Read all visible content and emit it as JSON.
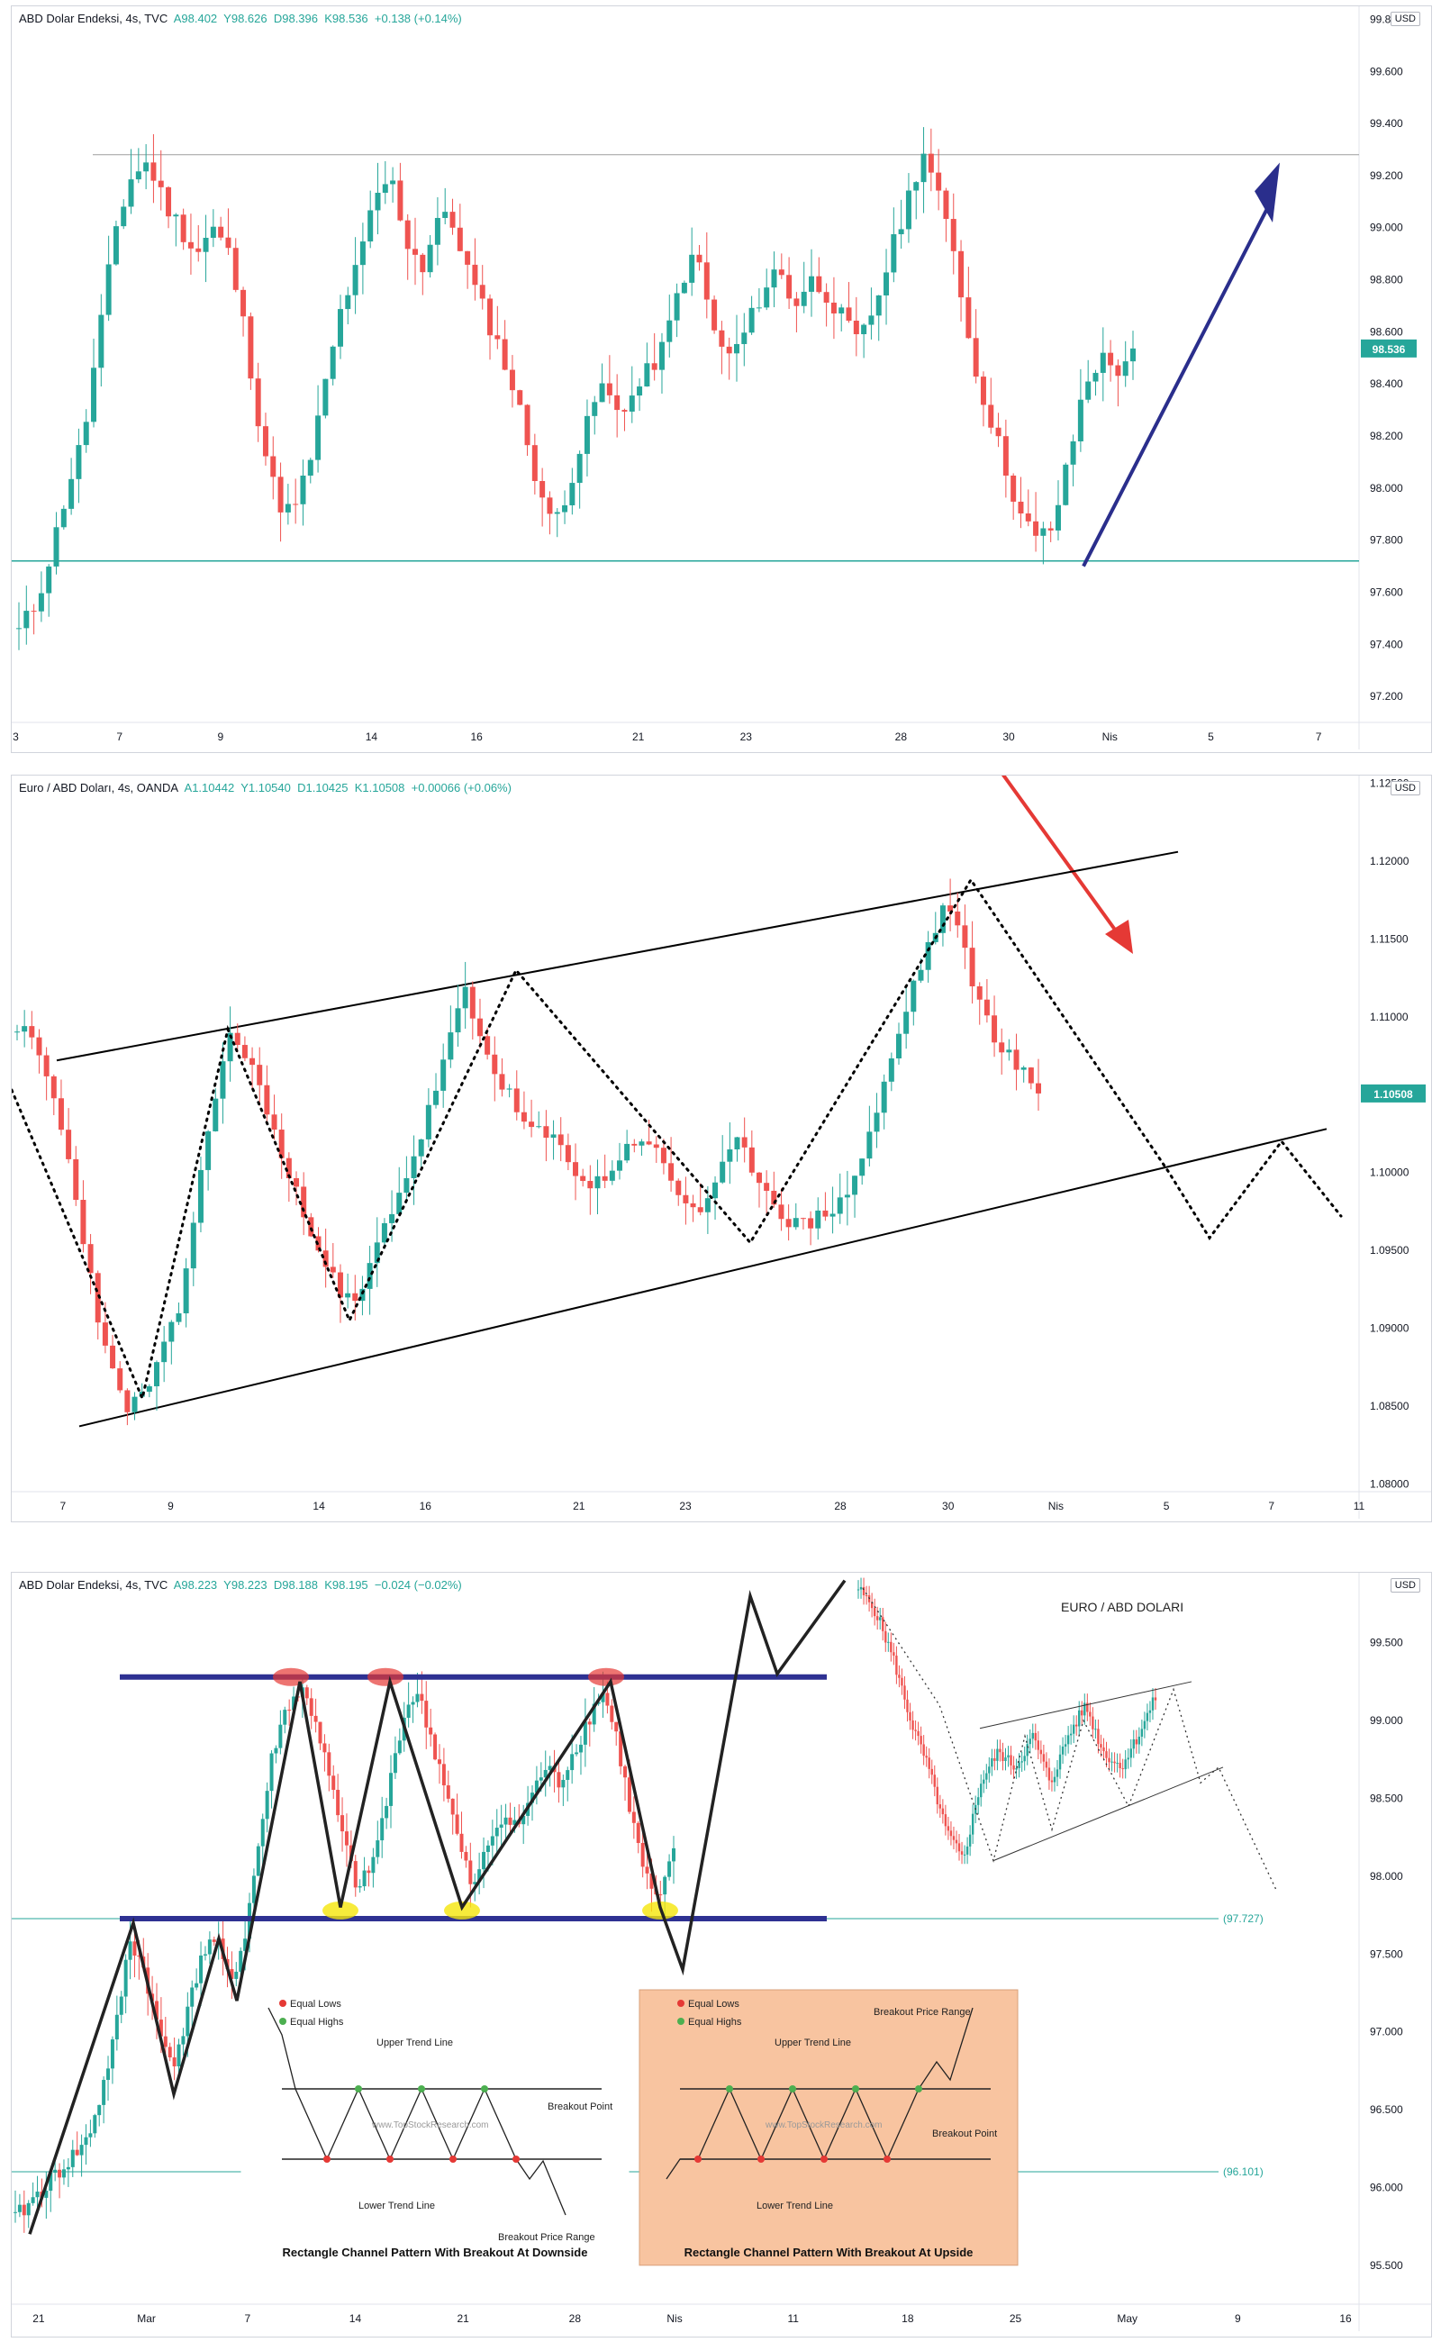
{
  "panels": [
    {
      "header": {
        "title": "ABD Dolar Endeksi, 4s, TVC",
        "a": "A98.402",
        "y": "Y98.626",
        "d": "D98.396",
        "k": "K98.536",
        "chg": "+0.138 (+0.14%)"
      },
      "currency": "USD",
      "last_price": "98.536",
      "yticks": [
        "99.800",
        "99.600",
        "99.400",
        "99.200",
        "99.000",
        "98.800",
        "98.600",
        "98.400",
        "98.200",
        "98.000",
        "97.800",
        "97.600",
        "97.400",
        "97.200"
      ],
      "xticks": [
        "3",
        "7",
        "9",
        "14",
        "16",
        "21",
        "23",
        "28",
        "30",
        "Nis",
        "5",
        "7"
      ]
    },
    {
      "header": {
        "title": "Euro / ABD Doları, 4s, OANDA",
        "a": "A1.10442",
        "y": "Y1.10540",
        "d": "D1.10425",
        "k": "K1.10508",
        "chg": "+0.00066 (+0.06%)"
      },
      "currency": "USD",
      "last_price": "1.10508",
      "yticks": [
        "1.12500",
        "1.12000",
        "1.11500",
        "1.11000",
        "1.10500",
        "1.10000",
        "1.09500",
        "1.09000",
        "1.08500",
        "1.08000"
      ],
      "xticks": [
        "7",
        "9",
        "14",
        "16",
        "21",
        "23",
        "28",
        "30",
        "Nis",
        "5",
        "7",
        "11"
      ]
    },
    {
      "header": {
        "title": "ABD Dolar Endeksi, 4s, TVC",
        "a": "A98.223",
        "y": "Y98.223",
        "d": "D98.188",
        "k": "K98.195",
        "chg": "−0.024 (−0.02%)"
      },
      "currency": "USD",
      "yticks": [
        "99.500",
        "99.000",
        "98.500",
        "98.000",
        "97.500",
        "97.000",
        "96.500",
        "96.000",
        "95.500"
      ],
      "xticks": [
        "21",
        "Mar",
        "7",
        "14",
        "21",
        "28",
        "Nis",
        "11",
        "18",
        "25",
        "May",
        "9",
        "16"
      ],
      "level_labels": [
        "(97.727)",
        "(96.101)"
      ],
      "inset_title": "EURO / ABD DOLARI",
      "legend_left": {
        "equal_lows": "Equal Lows",
        "equal_highs": "Equal Highs",
        "upper": "Upper Trend Line",
        "lower": "Lower Trend Line",
        "breakout": "Breakout Point",
        "range": "Breakout Price Range",
        "watermark": "www.TopStockResearch.com",
        "caption": "Rectangle Channel Pattern With Breakout At Downside"
      },
      "legend_right": {
        "equal_lows": "Equal Lows",
        "equal_highs": "Equal Highs",
        "upper": "Upper Trend Line",
        "lower": "Lower Trend Line",
        "breakout": "Breakout Point",
        "range": "Breakout Price Range",
        "watermark": "www.TopStockResearch.com",
        "caption": "Rectangle Channel Pattern With Breakout At Upside"
      }
    }
  ],
  "colors": {
    "up": "#26a69a",
    "down": "#ef5350",
    "blue_arrow": "#2a2e8c",
    "red_arrow": "#e53935",
    "channel": "#2e3192"
  },
  "chart_data": [
    {
      "type": "candlestick",
      "title": "ABD Dolar Endeksi, 4s, TVC",
      "ylim": [
        97.1,
        99.85
      ],
      "last": 98.536,
      "resistance": 99.28,
      "support": 97.72,
      "close_path": [
        97.45,
        97.55,
        97.75,
        98.0,
        98.2,
        98.6,
        99.0,
        99.2,
        99.25,
        99.1,
        99.0,
        98.9,
        99.0,
        98.9,
        98.6,
        98.2,
        97.95,
        97.9,
        98.1,
        98.4,
        98.7,
        98.85,
        99.1,
        99.2,
        98.95,
        98.85,
        99.05,
        99.0,
        98.8,
        98.65,
        98.5,
        98.3,
        98.05,
        97.85,
        98.0,
        98.2,
        98.4,
        98.3,
        98.35,
        98.45,
        98.55,
        98.8,
        98.9,
        98.6,
        98.5,
        98.6,
        98.75,
        98.85,
        98.7,
        98.8,
        98.75,
        98.65,
        98.55,
        98.7,
        98.9,
        99.1,
        99.3,
        99.1,
        98.9,
        98.5,
        98.3,
        98.1,
        97.9,
        97.8,
        97.85,
        98.1,
        98.4,
        98.5,
        98.45,
        98.536
      ]
    },
    {
      "type": "candlestick",
      "title": "Euro / ABD Doları, 4s, OANDA",
      "ylim": [
        1.0795,
        1.1255
      ],
      "last": 1.10508,
      "close_path": [
        1.1095,
        1.108,
        1.105,
        1.1,
        1.094,
        1.088,
        1.085,
        1.0855,
        1.088,
        1.091,
        1.098,
        1.105,
        1.109,
        1.107,
        1.104,
        1.1,
        1.0975,
        1.095,
        1.092,
        1.0915,
        1.095,
        1.098,
        1.1005,
        1.104,
        1.108,
        1.1115,
        1.108,
        1.106,
        1.1035,
        1.1025,
        1.102,
        1.1005,
        1.099,
        1.1,
        1.1015,
        1.1025,
        1.1005,
        1.0985,
        1.0975,
        1.099,
        1.102,
        1.1005,
        1.0985,
        1.097,
        1.0965,
        1.0975,
        1.098,
        1.1005,
        1.104,
        1.108,
        1.112,
        1.115,
        1.1175,
        1.1135,
        1.11,
        1.108,
        1.1065,
        1.10508
      ]
    },
    {
      "type": "candlestick",
      "title": "ABD Dolar Endeksi, 4s, TVC",
      "ylim": [
        95.25,
        99.95
      ],
      "channel": [
        97.727,
        99.28
      ],
      "levels": [
        97.727,
        96.101
      ],
      "close_path": [
        95.8,
        95.9,
        96.0,
        96.1,
        96.2,
        96.3,
        96.6,
        97.0,
        97.6,
        97.4,
        97.0,
        96.8,
        97.1,
        97.5,
        97.6,
        97.3,
        97.6,
        98.2,
        98.8,
        99.1,
        99.2,
        99.0,
        98.6,
        98.2,
        97.9,
        98.1,
        98.5,
        99.0,
        99.2,
        98.9,
        98.6,
        98.2,
        97.9,
        98.2,
        98.4,
        98.3,
        98.5,
        98.7,
        98.6,
        98.8,
        99.0,
        99.2,
        98.9,
        98.4,
        98.0,
        97.8,
        98.2
      ]
    }
  ]
}
